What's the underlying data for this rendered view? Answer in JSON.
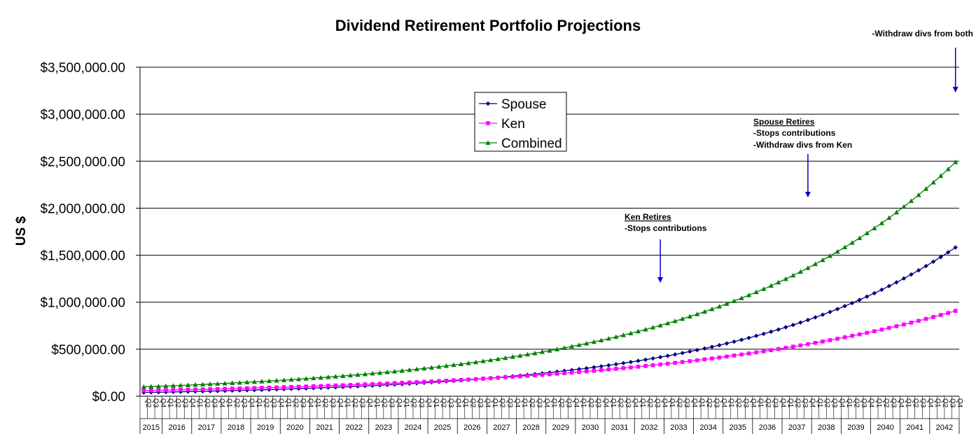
{
  "chart_data": {
    "type": "line",
    "title": "Dividend Retirement Portfolio Projections",
    "ylabel": "US $",
    "ylim": [
      0,
      3500000
    ],
    "ytick_values": [
      0,
      500000,
      1000000,
      1500000,
      2000000,
      2500000,
      3000000,
      3500000
    ],
    "ytick_labels": [
      "$0.00",
      "$500,000.00",
      "$1,000,000.00",
      "$1,500,000.00",
      "$2,000,000.00",
      "$2,500,000.00",
      "$3,000,000.00",
      "$3,500,000.00"
    ],
    "grid": true,
    "legend_position": "top-center",
    "start_quarter": "Q2",
    "quarter_labels": [
      "Q1",
      "Q2",
      "Q3",
      "Q4"
    ],
    "years": [
      "2015",
      "2016",
      "2017",
      "2018",
      "2019",
      "2020",
      "2021",
      "2022",
      "2023",
      "2024",
      "2025",
      "2026",
      "2027",
      "2028",
      "2029",
      "2030",
      "2031",
      "2032",
      "2033",
      "2034",
      "2035",
      "2036",
      "2037",
      "2038",
      "2039",
      "2040",
      "2041",
      "2042"
    ],
    "x": [
      "2015 Q2",
      "2015 Q3",
      "2015 Q4",
      "2016 Q1",
      "2016 Q2",
      "2016 Q3",
      "2016 Q4",
      "2017 Q1",
      "2017 Q2",
      "2017 Q3",
      "2017 Q4",
      "2018 Q1",
      "2018 Q2",
      "2018 Q3",
      "2018 Q4",
      "2019 Q1",
      "2019 Q2",
      "2019 Q3",
      "2019 Q4",
      "2020 Q1",
      "2020 Q2",
      "2020 Q3",
      "2020 Q4",
      "2021 Q1",
      "2021 Q2",
      "2021 Q3",
      "2021 Q4",
      "2022 Q1",
      "2022 Q2",
      "2022 Q3",
      "2022 Q4",
      "2023 Q1",
      "2023 Q2",
      "2023 Q3",
      "2023 Q4",
      "2024 Q1",
      "2024 Q2",
      "2024 Q3",
      "2024 Q4",
      "2025 Q1",
      "2025 Q2",
      "2025 Q3",
      "2025 Q4",
      "2026 Q1",
      "2026 Q2",
      "2026 Q3",
      "2026 Q4",
      "2027 Q1",
      "2027 Q2",
      "2027 Q3",
      "2027 Q4",
      "2028 Q1",
      "2028 Q2",
      "2028 Q3",
      "2028 Q4",
      "2029 Q1",
      "2029 Q2",
      "2029 Q3",
      "2029 Q4",
      "2030 Q1",
      "2030 Q2",
      "2030 Q3",
      "2030 Q4",
      "2031 Q1",
      "2031 Q2",
      "2031 Q3",
      "2031 Q4",
      "2032 Q1",
      "2032 Q2",
      "2032 Q3",
      "2032 Q4",
      "2033 Q1",
      "2033 Q2",
      "2033 Q3",
      "2033 Q4",
      "2034 Q1",
      "2034 Q2",
      "2034 Q3",
      "2034 Q4",
      "2035 Q1",
      "2035 Q2",
      "2035 Q3",
      "2035 Q4",
      "2036 Q1",
      "2036 Q2",
      "2036 Q3",
      "2036 Q4",
      "2037 Q1",
      "2037 Q2",
      "2037 Q3",
      "2037 Q4",
      "2038 Q1",
      "2038 Q2",
      "2038 Q3",
      "2038 Q4",
      "2039 Q1",
      "2039 Q2",
      "2039 Q3",
      "2039 Q4",
      "2040 Q1",
      "2040 Q2",
      "2040 Q3",
      "2040 Q4",
      "2041 Q1",
      "2041 Q2",
      "2041 Q3",
      "2041 Q4",
      "2042 Q1",
      "2042 Q2",
      "2042 Q3",
      "2042 Q4"
    ],
    "series": [
      {
        "name": "Spouse",
        "color": "#000080",
        "marker": "diamond",
        "values": [
          40000,
          41360,
          42766,
          44220,
          45724,
          47279,
          48886,
          50548,
          52267,
          54044,
          55882,
          57782,
          59746,
          61778,
          63878,
          66050,
          68296,
          70618,
          73019,
          75502,
          78069,
          80723,
          83468,
          86306,
          89240,
          92275,
          95412,
          98656,
          102010,
          105479,
          109065,
          112773,
          116608,
          120572,
          124672,
          128911,
          133294,
          137826,
          142512,
          147357,
          152367,
          157548,
          162904,
          168443,
          174170,
          180092,
          186215,
          192546,
          199093,
          205862,
          212861,
          220099,
          227582,
          235320,
          243321,
          251594,
          260148,
          268993,
          278139,
          287596,
          297375,
          307485,
          317940,
          328750,
          339927,
          351485,
          363435,
          375792,
          388570,
          401781,
          415442,
          429567,
          444172,
          459274,
          474890,
          491036,
          507731,
          524994,
          542844,
          561301,
          580385,
          600118,
          620522,
          641619,
          663434,
          685991,
          709315,
          733432,
          758369,
          784153,
          810814,
          838382,
          866887,
          896361,
          926837,
          958350,
          990934,
          1024625,
          1059462,
          1095484,
          1132731,
          1171244,
          1211066,
          1252243,
          1294819,
          1338843,
          1384364,
          1431432,
          1480101,
          1530424,
          1582458
        ]
      },
      {
        "name": "Ken",
        "color": "#FF00FF",
        "marker": "square",
        "values": [
          60000,
          61500,
          63037,
          64613,
          66229,
          67884,
          69582,
          71321,
          73104,
          74932,
          76805,
          78725,
          80694,
          82711,
          84779,
          86898,
          89071,
          91297,
          93580,
          95919,
          98317,
          100775,
          103295,
          105877,
          108524,
          111237,
          114018,
          116868,
          119790,
          122785,
          125855,
          129001,
          132226,
          135532,
          138920,
          142393,
          145953,
          149602,
          153342,
          157176,
          161105,
          165133,
          169261,
          173493,
          177830,
          182275,
          186832,
          191503,
          196291,
          201198,
          206228,
          211384,
          216668,
          222085,
          227637,
          233328,
          239161,
          245140,
          251269,
          257551,
          263989,
          270589,
          277354,
          284288,
          291395,
          298680,
          306147,
          313801,
          321646,
          329687,
          337929,
          346377,
          355037,
          363913,
          373010,
          382336,
          391894,
          401692,
          411734,
          422027,
          432578,
          443392,
          454477,
          465839,
          477485,
          489422,
          501658,
          514200,
          527055,
          540231,
          553737,
          567580,
          581770,
          596314,
          611222,
          626502,
          642165,
          658219,
          674674,
          691541,
          708829,
          726550,
          744714,
          763332,
          782415,
          801975,
          822025,
          842575,
          863640,
          885231,
          907362
        ]
      },
      {
        "name": "Combined",
        "color": "#008000",
        "marker": "triangle",
        "values": [
          100000,
          102860,
          105803,
          108833,
          111953,
          115163,
          118468,
          121869,
          125371,
          128976,
          132687,
          136507,
          140440,
          144489,
          148657,
          152948,
          157367,
          161915,
          166599,
          171421,
          176386,
          181498,
          186763,
          192183,
          197764,
          203512,
          209430,
          215524,
          221800,
          228264,
          234920,
          241774,
          248834,
          256104,
          263592,
          271304,
          279247,
          287428,
          295854,
          304533,
          313472,
          322681,
          332165,
          341936,
          352000,
          362367,
          373047,
          384049,
          395384,
          407060,
          419089,
          431483,
          444250,
          457405,
          470958,
          484922,
          499309,
          514133,
          529408,
          545147,
          561364,
          578074,
          595294,
          613038,
          631322,
          650165,
          669582,
          689593,
          710216,
          731468,
          753371,
          775944,
          799209,
          823187,
          847900,
          873372,
          899625,
          926686,
          954578,
          983328,
          1012963,
          1043510,
          1074999,
          1107458,
          1140919,
          1175413,
          1210973,
          1247632,
          1285424,
          1324384,
          1364551,
          1405962,
          1448657,
          1492675,
          1538059,
          1584852,
          1633099,
          1682844,
          1734136,
          1787025,
          1841560,
          1897794,
          1955780,
          2015575,
          2077234,
          2140818,
          2206389,
          2274007,
          2343741,
          2415655,
          2489820
        ]
      }
    ],
    "annotations": [
      {
        "x": "2032 Q4",
        "heading": "Ken Retires",
        "lines": [
          "-Stops contributions"
        ]
      },
      {
        "x": "2037 Q4",
        "heading": "Spouse Retires",
        "lines": [
          "-Stops contributions",
          "-Withdraw divs from Ken"
        ]
      },
      {
        "x": "2042 Q4",
        "heading": "",
        "lines": [
          "-Withdraw divs from both"
        ]
      }
    ]
  }
}
